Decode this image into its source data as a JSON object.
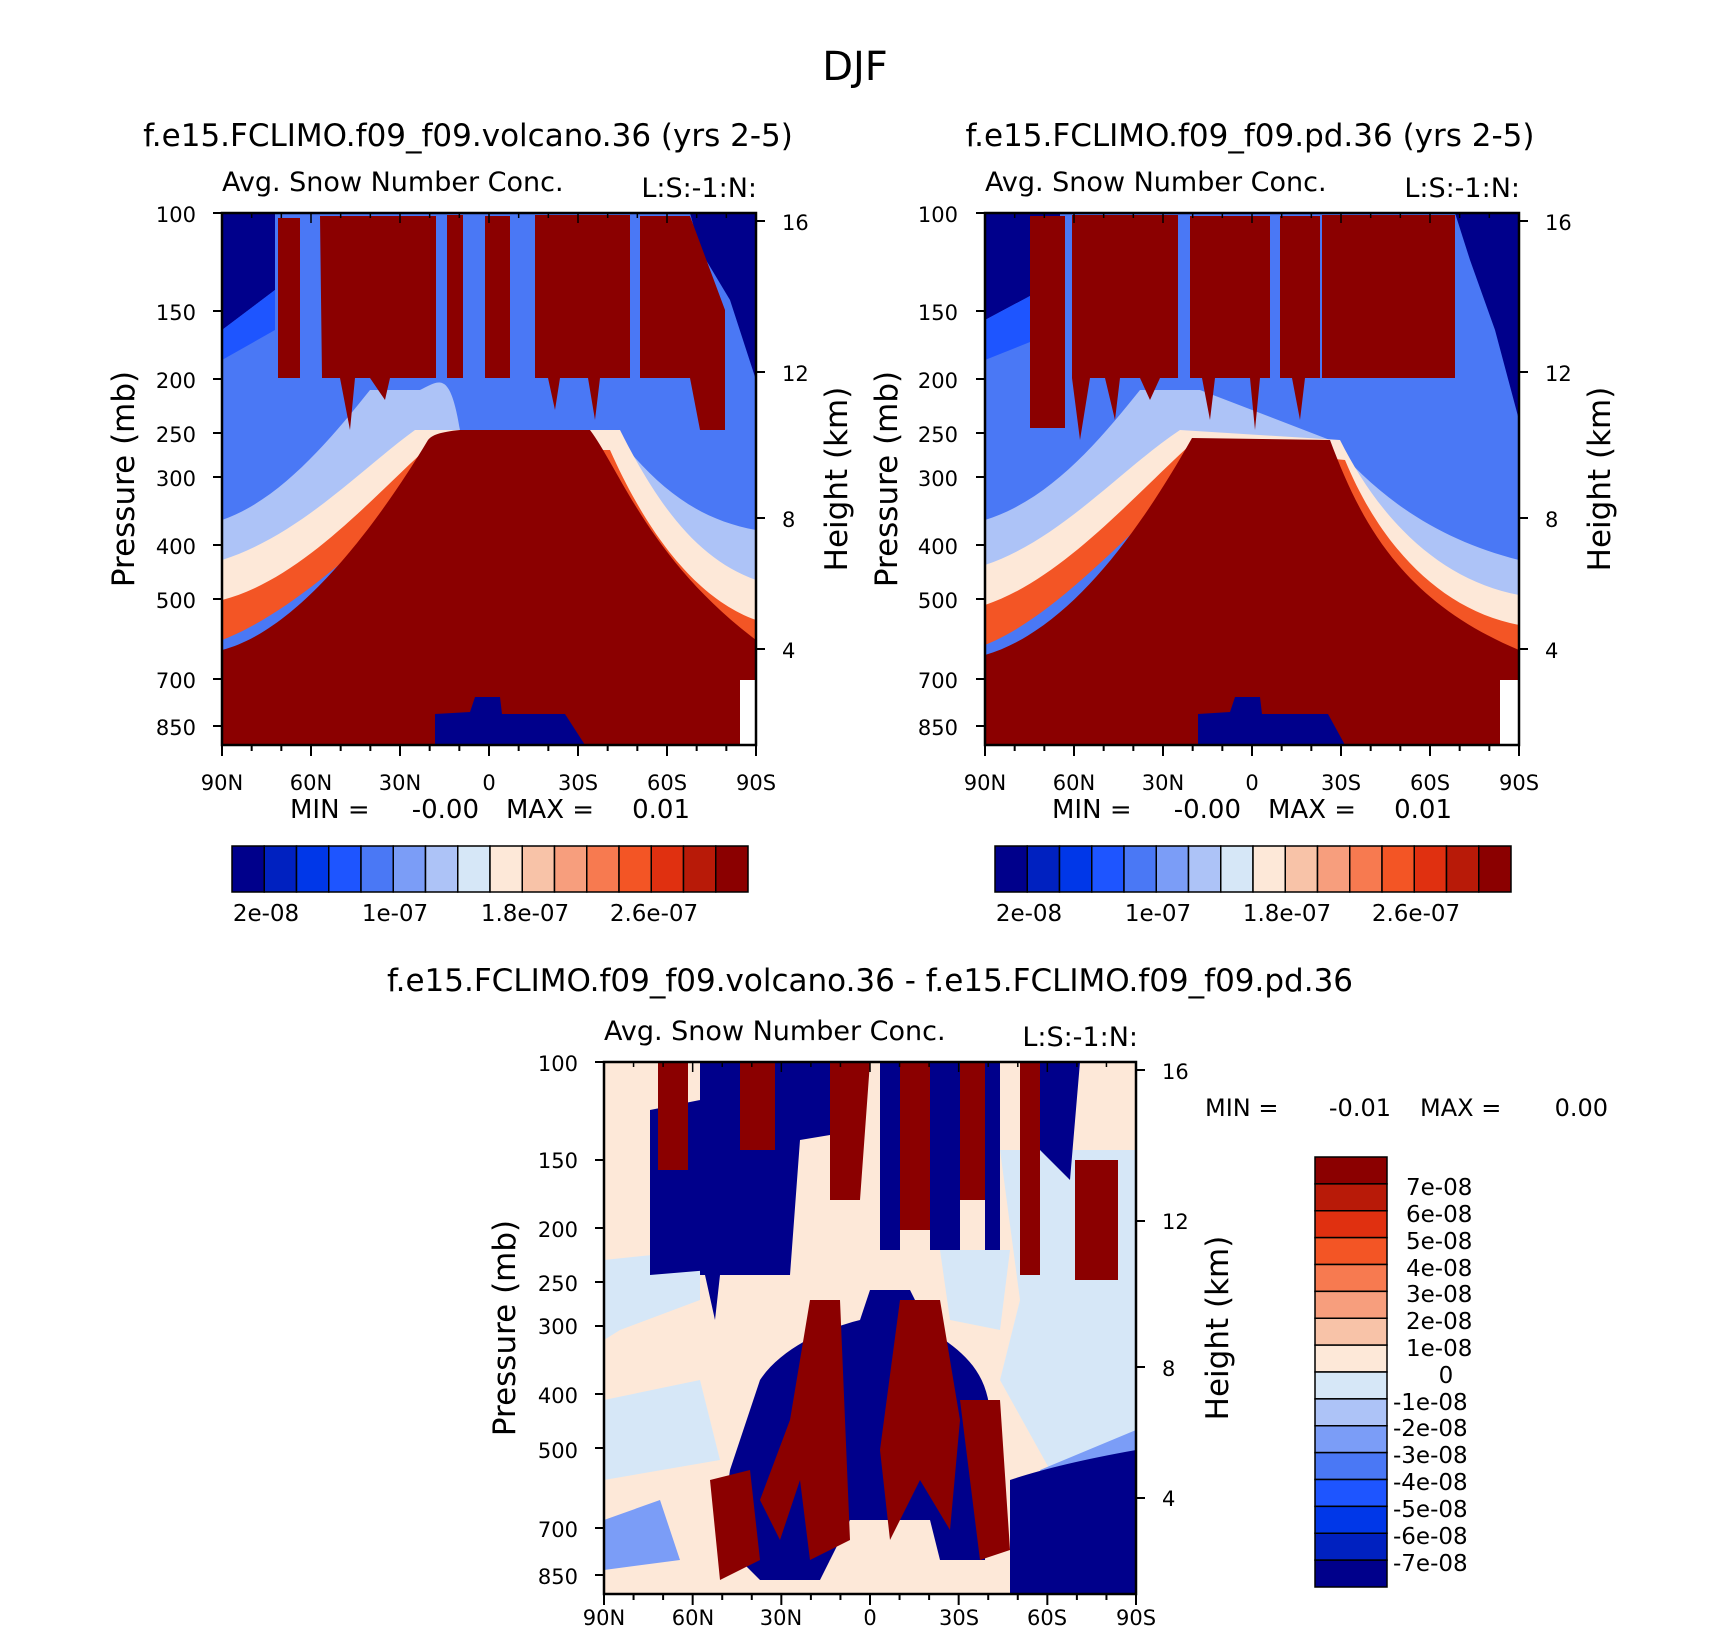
{
  "page_title": "DJF",
  "chart_data": [
    {
      "type": "heatmap",
      "title": "f.e15.FCLIMO.f09_f09.volcano.36 (yrs 2-5)",
      "subtitle": "Avg. Snow Number Conc.",
      "units_label": "L:S:-1:N:",
      "ylabel": "Pressure (mb)",
      "ylabel_right": "Height (km)",
      "x_ticks": [
        "90N",
        "60N",
        "30N",
        "0",
        "30S",
        "60S",
        "90S"
      ],
      "y_ticks": [
        "100",
        "150",
        "200",
        "250",
        "300",
        "400",
        "500",
        "700",
        "850"
      ],
      "y_ticks_right": [
        "16",
        "12",
        "8",
        "4"
      ],
      "min_label": "MIN =",
      "min_value": "-0.00",
      "max_label": "MAX =",
      "max_value": "0.01",
      "colorbar_labels": [
        "2e-08",
        "1e-07",
        "1.8e-07",
        "2.6e-07"
      ],
      "colorbar_colors": [
        "#00008b",
        "#0021c0",
        "#0037e8",
        "#1e55ff",
        "#4a78f5",
        "#7b9df7",
        "#adc3f7",
        "#d6e7f7",
        "#fde8d8",
        "#f8c3a8",
        "#f79e7d",
        "#f77a50",
        "#f35525",
        "#e03010",
        "#b81a08",
        "#8b0000"
      ],
      "region_colors": {
        "high": "#8b0000",
        "low": "#00008b"
      }
    },
    {
      "type": "heatmap",
      "title": "f.e15.FCLIMO.f09_f09.pd.36 (yrs 2-5)",
      "subtitle": "Avg. Snow Number Conc.",
      "units_label": "L:S:-1:N:",
      "ylabel": "Pressure (mb)",
      "ylabel_right": "Height (km)",
      "x_ticks": [
        "90N",
        "60N",
        "30N",
        "0",
        "30S",
        "60S",
        "90S"
      ],
      "y_ticks": [
        "100",
        "150",
        "200",
        "250",
        "300",
        "400",
        "500",
        "700",
        "850"
      ],
      "y_ticks_right": [
        "16",
        "12",
        "8",
        "4"
      ],
      "min_label": "MIN =",
      "min_value": "-0.00",
      "max_label": "MAX =",
      "max_value": "0.01",
      "colorbar_labels": [
        "2e-08",
        "1e-07",
        "1.8e-07",
        "2.6e-07"
      ],
      "colorbar_colors": [
        "#00008b",
        "#0021c0",
        "#0037e8",
        "#1e55ff",
        "#4a78f5",
        "#7b9df7",
        "#adc3f7",
        "#d6e7f7",
        "#fde8d8",
        "#f8c3a8",
        "#f79e7d",
        "#f77a50",
        "#f35525",
        "#e03010",
        "#b81a08",
        "#8b0000"
      ],
      "region_colors": {
        "high": "#8b0000",
        "low": "#00008b"
      }
    },
    {
      "type": "heatmap",
      "title": "f.e15.FCLIMO.f09_f09.volcano.36 - f.e15.FCLIMO.f09_f09.pd.36",
      "subtitle": "Avg. Snow Number Conc.",
      "units_label": "L:S:-1:N:",
      "ylabel": "Pressure (mb)",
      "ylabel_right": "Height (km)",
      "x_ticks": [
        "90N",
        "60N",
        "30N",
        "0",
        "30S",
        "60S",
        "90S"
      ],
      "y_ticks": [
        "100",
        "150",
        "200",
        "250",
        "300",
        "400",
        "500",
        "700",
        "850"
      ],
      "y_ticks_right": [
        "16",
        "12",
        "8",
        "4"
      ],
      "min_label": "MIN =",
      "min_value": "-0.01",
      "max_label": "MAX =",
      "max_value": "0.00",
      "colorbar_labels": [
        "7e-08",
        "6e-08",
        "5e-08",
        "4e-08",
        "3e-08",
        "2e-08",
        "1e-08",
        "0",
        "-1e-08",
        "-2e-08",
        "-3e-08",
        "-4e-08",
        "-5e-08",
        "-6e-08",
        "-7e-08"
      ],
      "colorbar_colors": [
        "#8b0000",
        "#b81a08",
        "#e03010",
        "#f35525",
        "#f77a50",
        "#f79e7d",
        "#f8c3a8",
        "#fde8d8",
        "#d6e7f7",
        "#adc3f7",
        "#7b9df7",
        "#4a78f5",
        "#1e55ff",
        "#0037e8",
        "#0021c0",
        "#00008b"
      ],
      "region_colors": {
        "high": "#8b0000",
        "low": "#00008b",
        "neutral_pos": "#fde8d8",
        "neutral_neg": "#d6e7f7"
      }
    }
  ]
}
